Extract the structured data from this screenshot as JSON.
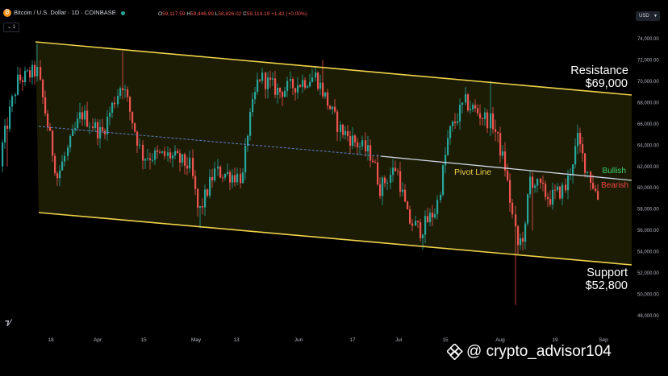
{
  "header": {
    "symbol": "Bitcoin / U.S. Dollar · 1D · COINBASE",
    "ohlc": [
      {
        "k": "O",
        "v": "59,117.59"
      },
      {
        "k": "H",
        "v": "59,446.99"
      },
      {
        "k": "L",
        "v": "58,826.02"
      },
      {
        "k": "C",
        "v": "59,114.19"
      }
    ],
    "change": "+1.42 (+0.00%)",
    "indicator_pill": "1",
    "currency": "USD"
  },
  "chart_data": {
    "type": "candlestick",
    "ylim": [
      47000,
      75000
    ],
    "y_ticks": [
      "74,000.00",
      "72,000.00",
      "70,000.00",
      "68,000.00",
      "66,000.00",
      "64,000.00",
      "62,000.00",
      "60,000.00",
      "58,000.00",
      "56,000.00",
      "54,000.00",
      "52,000.00",
      "50,000.00",
      "48,000.00"
    ],
    "x_ticks": [
      "18",
      "Apr",
      "15",
      "May",
      "13",
      "Jun",
      "17",
      "Jul",
      "15",
      "Aug",
      "19",
      "Sep"
    ],
    "annotations": {
      "resistance_label": "Resistance",
      "resistance_value": "$69,000",
      "support_label": "Support",
      "support_value": "$52,800",
      "pivot_label": "Pivot Line",
      "bullish_label": "Bullish",
      "bearish_label": "Bearish"
    },
    "colors": {
      "up": "#26a69a",
      "down": "#ef5350",
      "channel": "#f0d34a",
      "pivot": "#5b7fc7"
    }
  },
  "watermark": "@ crypto_advisor104"
}
